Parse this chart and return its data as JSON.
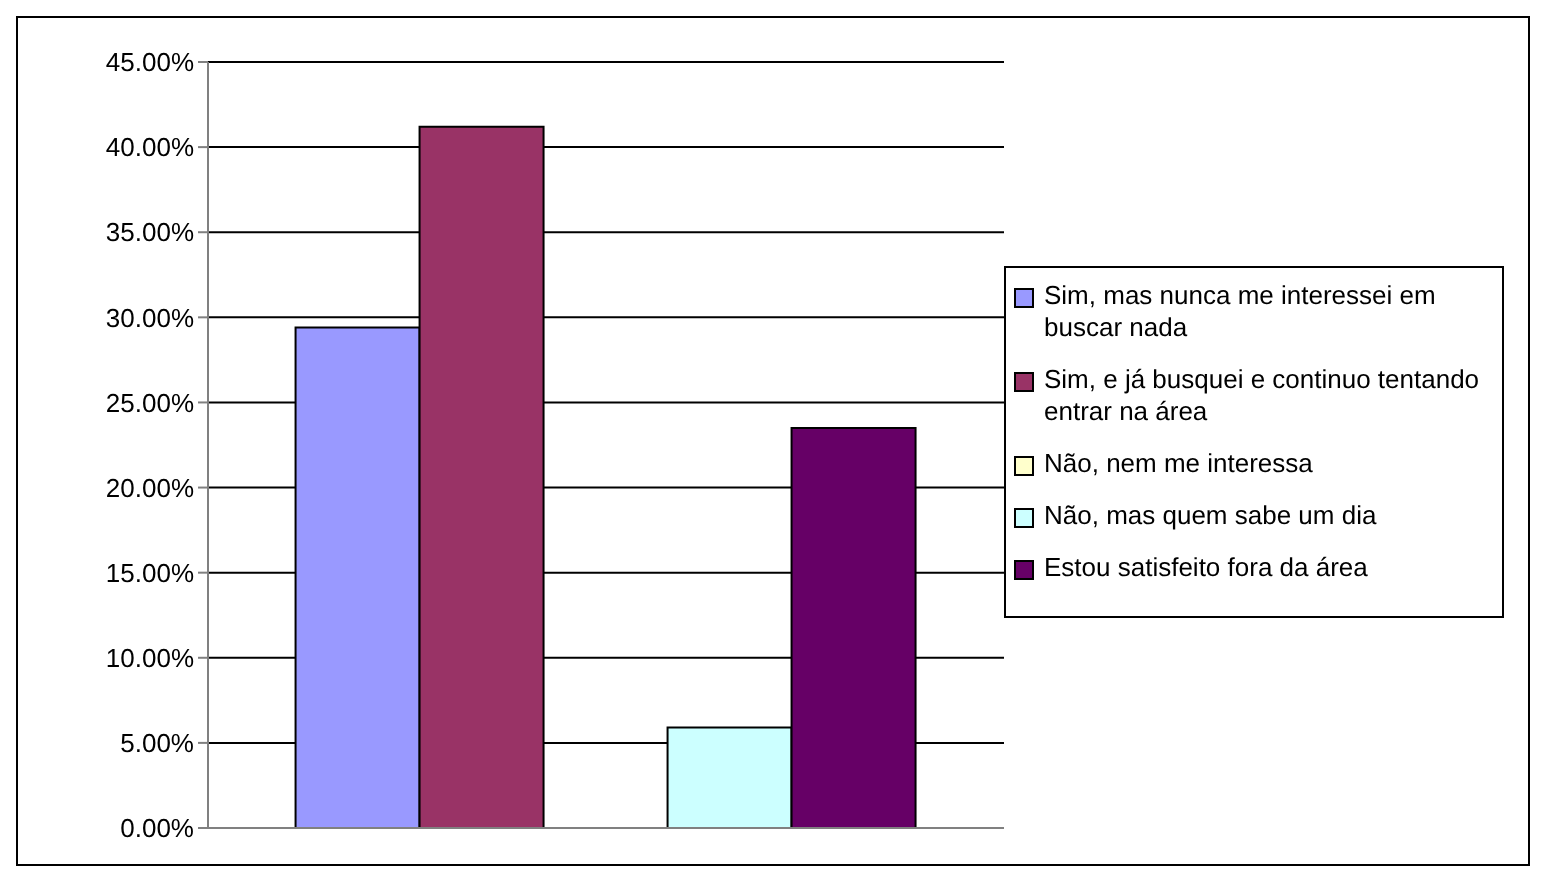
{
  "chart_data": {
    "type": "bar",
    "categories": [
      null
    ],
    "series": [
      {
        "name": "Sim, mas nunca me interessei em buscar nada",
        "color": "#9999ff",
        "values": [
          29.4
        ]
      },
      {
        "name": "Sim, e já busquei e continuo tentando entrar na área",
        "color": "#993366",
        "values": [
          41.2
        ]
      },
      {
        "name": "Não, nem me interessa",
        "color": "#ffffcc",
        "values": [
          0
        ]
      },
      {
        "name": "Não, mas quem sabe um dia",
        "color": "#ccffff",
        "values": [
          5.9
        ]
      },
      {
        "name": "Estou satisfeito fora da área",
        "color": "#660066",
        "values": [
          23.5
        ]
      }
    ],
    "ylim": [
      0,
      45
    ],
    "yticks": [
      {
        "value": 0,
        "label": "0.00%"
      },
      {
        "value": 5,
        "label": "5.00%"
      },
      {
        "value": 10,
        "label": "10.00%"
      },
      {
        "value": 15,
        "label": "15.00%"
      },
      {
        "value": 20,
        "label": "20.00%"
      },
      {
        "value": 25,
        "label": "25.00%"
      },
      {
        "value": 30,
        "label": "30.00%"
      },
      {
        "value": 35,
        "label": "35.00%"
      },
      {
        "value": 40,
        "label": "40.00%"
      },
      {
        "value": 45,
        "label": "45.00%"
      }
    ],
    "grid": "y",
    "legend": "right"
  }
}
